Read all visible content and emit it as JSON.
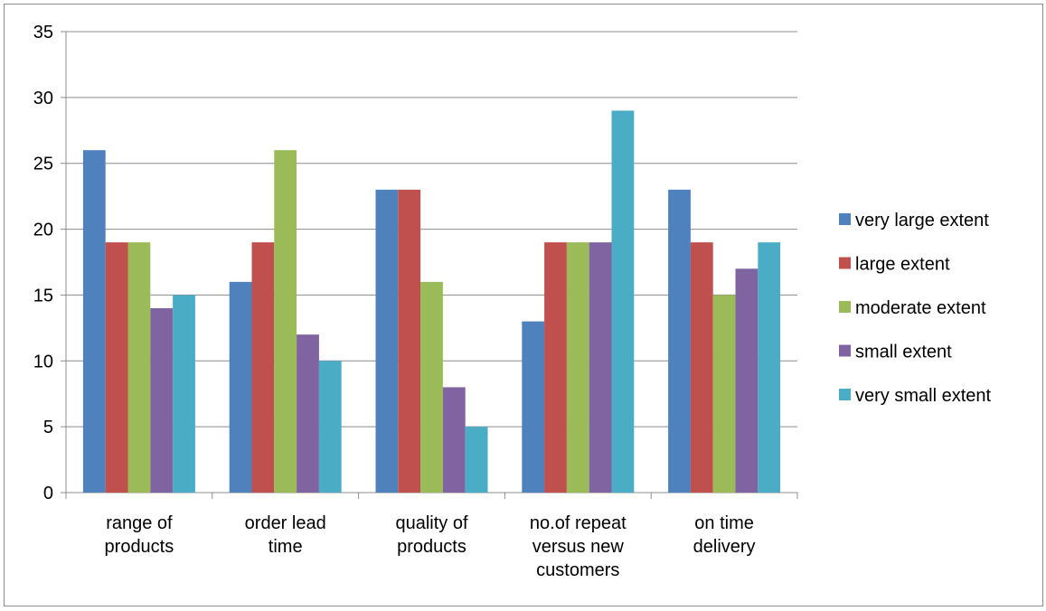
{
  "chart_data": {
    "type": "bar",
    "categories": [
      [
        "range of",
        "products"
      ],
      [
        "order lead",
        "time"
      ],
      [
        "quality of",
        "products"
      ],
      [
        "no.of repeat",
        "versus new",
        "customers"
      ],
      [
        "on time",
        "delivery"
      ]
    ],
    "series": [
      {
        "name": "very large extent",
        "color": "#4f81bd",
        "values": [
          26,
          16,
          23,
          13,
          23
        ]
      },
      {
        "name": "large extent",
        "color": "#c0504d",
        "values": [
          19,
          19,
          23,
          19,
          19
        ]
      },
      {
        "name": "moderate extent",
        "color": "#9bbb59",
        "values": [
          19,
          26,
          16,
          19,
          15
        ]
      },
      {
        "name": "small extent",
        "color": "#8064a2",
        "values": [
          14,
          12,
          8,
          19,
          17
        ]
      },
      {
        "name": "very small extent",
        "color": "#4bacc6",
        "values": [
          15,
          10,
          5,
          29,
          19
        ]
      }
    ],
    "ylim": [
      0,
      35
    ],
    "yticks": [
      "0",
      "5",
      "10",
      "15",
      "20",
      "25",
      "30",
      "35"
    ],
    "grid": true,
    "legend": "right",
    "title": "",
    "xlabel": "",
    "ylabel": ""
  }
}
